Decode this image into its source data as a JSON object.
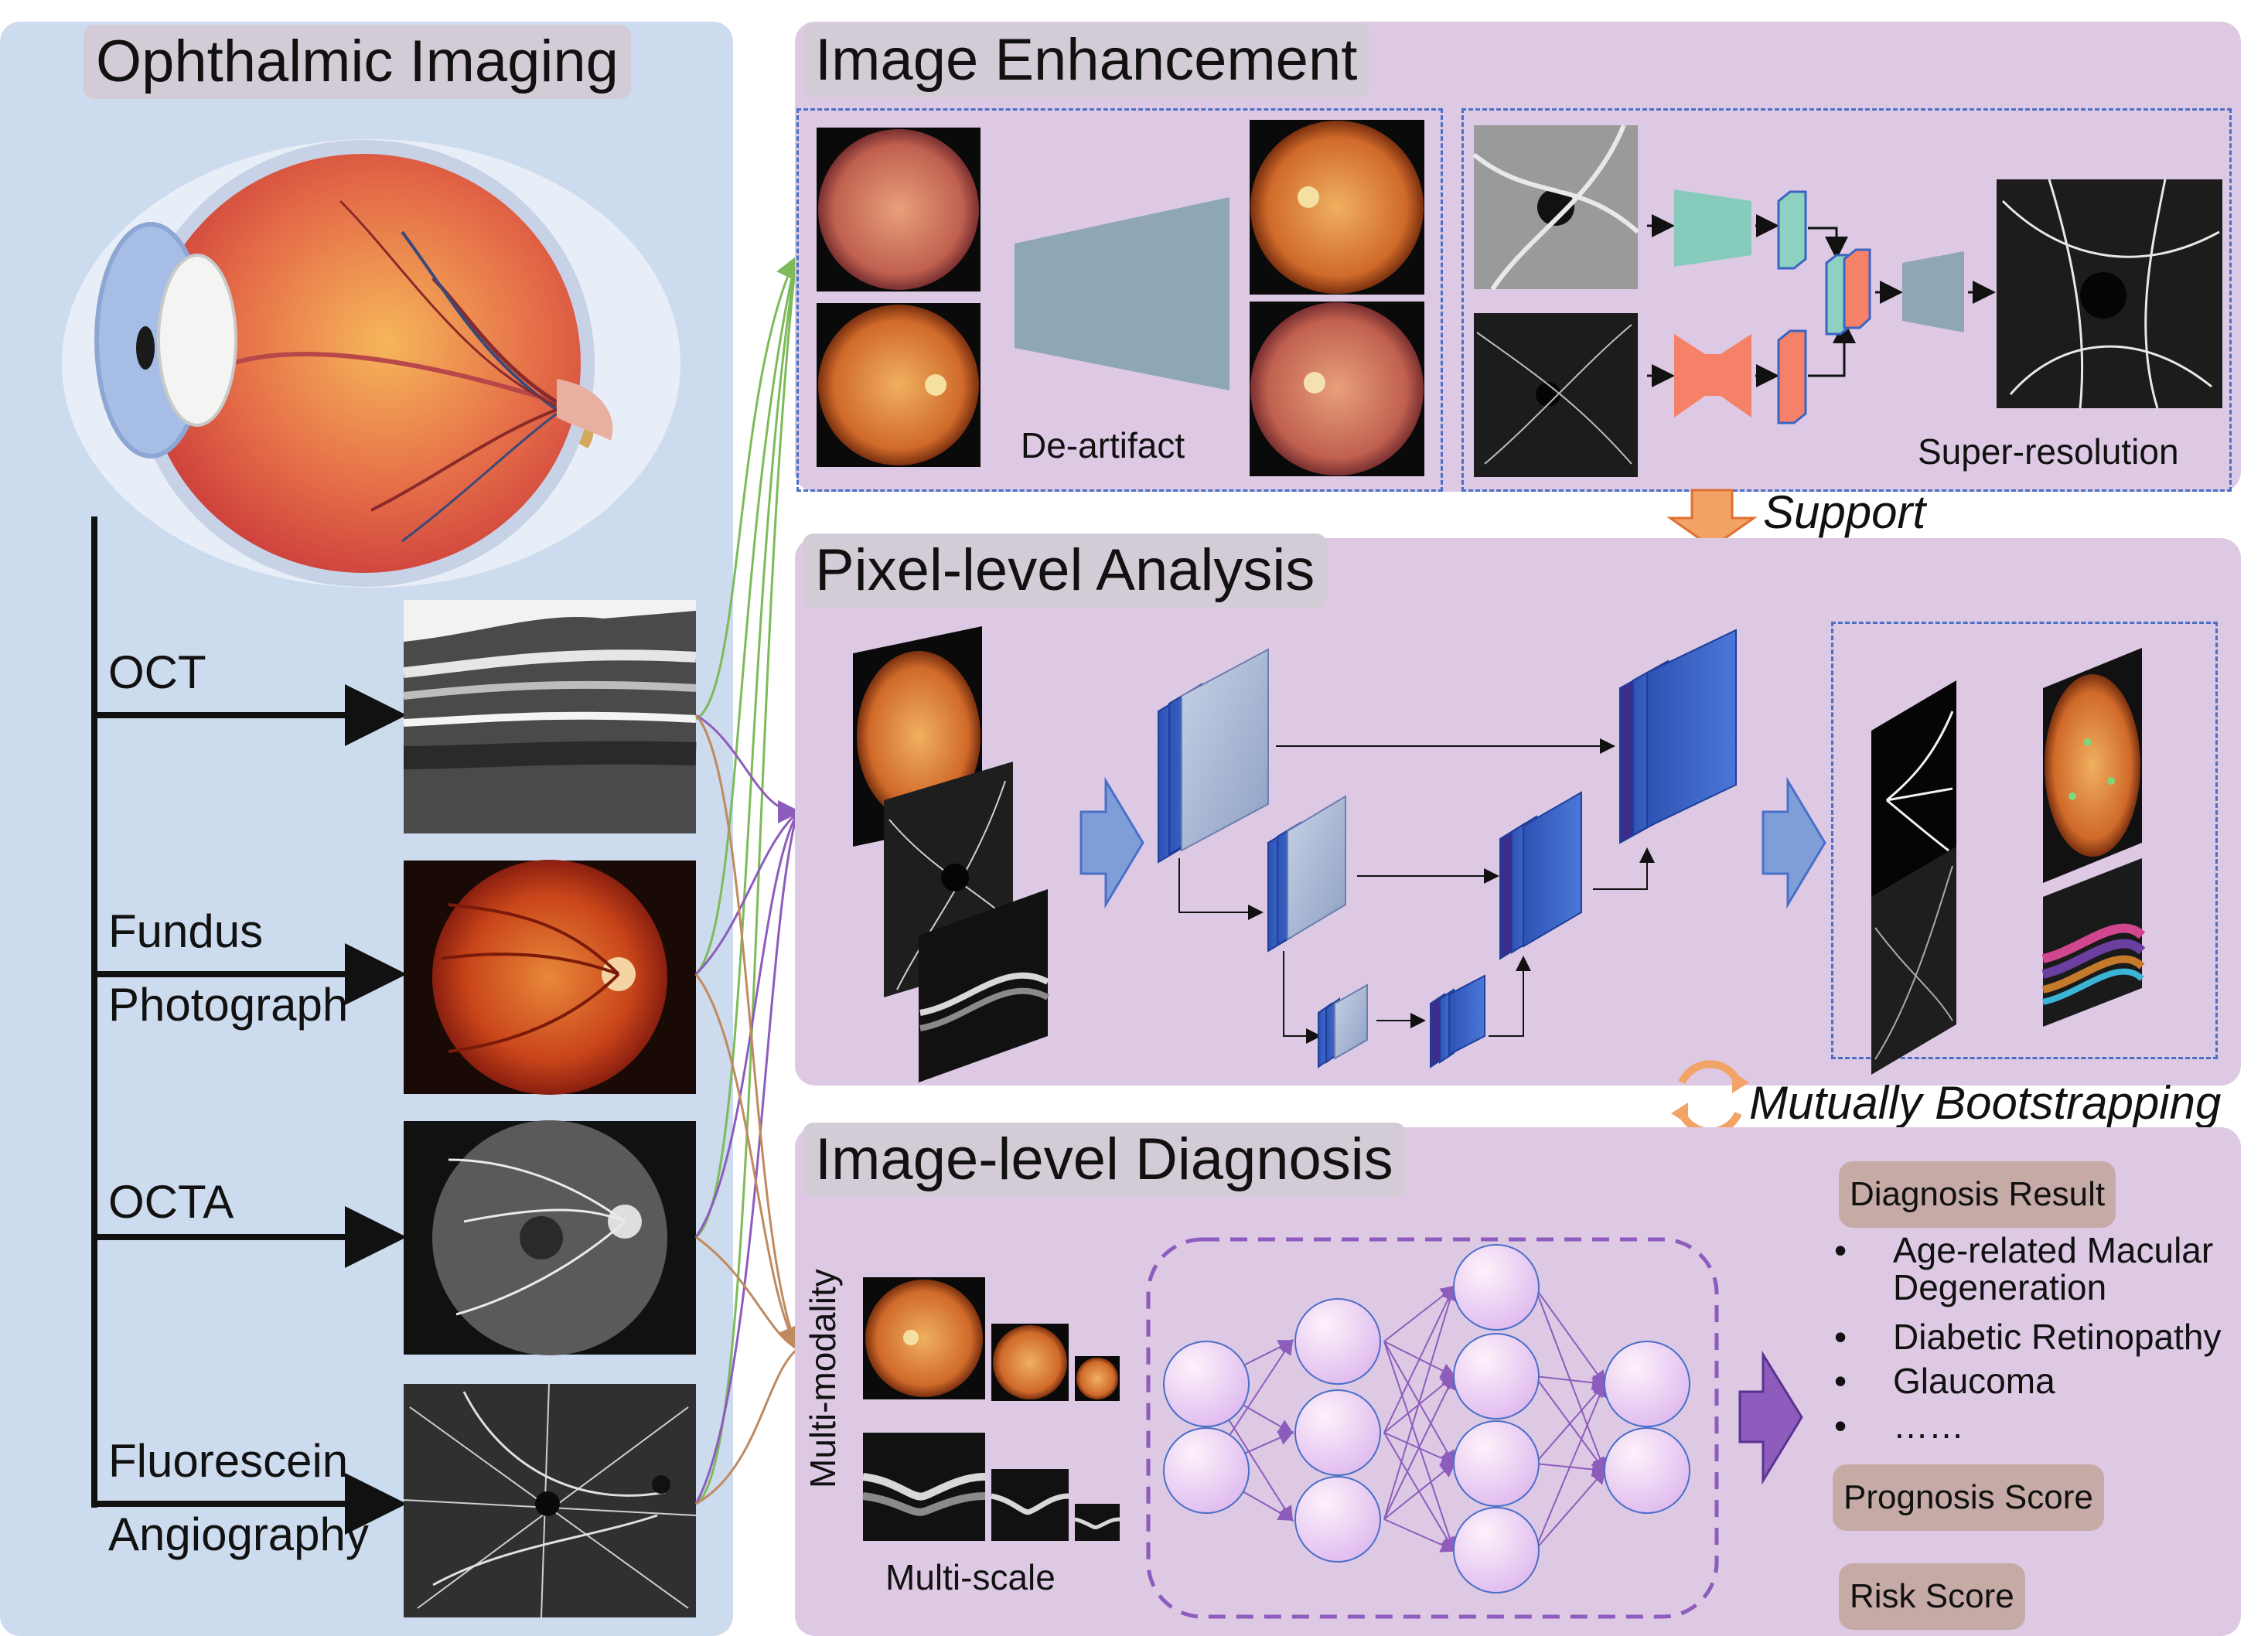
{
  "left_panel": {
    "title": "Ophthalmic Imaging",
    "modalities": [
      {
        "line1": "OCT",
        "line2": ""
      },
      {
        "line1": "Fundus",
        "line2": "Photograph"
      },
      {
        "line1": "OCTA",
        "line2": ""
      },
      {
        "line1": "Fluorescein",
        "line2": "Angiography"
      }
    ]
  },
  "enhancement": {
    "title": "Image Enhancement",
    "deartifact_label": "De-artifact",
    "superres_label": "Super-resolution"
  },
  "support_label": "Support",
  "pixel": {
    "title": "Pixel-level Analysis"
  },
  "bootstrap_label": "Mutually Bootstrapping",
  "diagnosis": {
    "title": "Image-level Diagnosis",
    "multimodality_label": "Multi-modality",
    "multiscale_label": "Multi-scale",
    "result_title": "Diagnosis Result",
    "results": [
      "Age-related Macular Degeneration",
      "Diabetic Retinopathy",
      "Glaucoma",
      "……"
    ],
    "prognosis_label": "Prognosis Score",
    "risk_label": "Risk Score"
  },
  "colors": {
    "left_bg": "#cddbee",
    "panel_bg": "#ddc9e4",
    "title_box": "#d3ccd6",
    "pill": "#c5aaa5",
    "dash_blue": "#4a6fc8",
    "net_blue": "#3a63c4",
    "arrow_orange": "#f2a467",
    "arrow_purple": "#8d5cbc"
  }
}
